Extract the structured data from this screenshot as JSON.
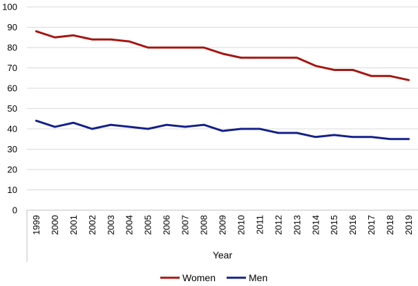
{
  "chart_data": {
    "type": "line",
    "title": "",
    "xlabel": "Year",
    "ylabel": "",
    "ylim": [
      0,
      100
    ],
    "yticks": [
      "0",
      "10",
      "20",
      "30",
      "40",
      "50",
      "60",
      "70",
      "80",
      "90",
      "100"
    ],
    "categories": [
      "1999",
      "2000",
      "2001",
      "2002",
      "2003",
      "2004",
      "2005",
      "2006",
      "2007",
      "2008",
      "2009",
      "2010",
      "2011",
      "2012",
      "2013",
      "2014",
      "2015",
      "2016",
      "2017",
      "2018",
      "2019"
    ],
    "grid": "horizontal",
    "legend": "bottom",
    "series": [
      {
        "name": "Women",
        "color": "#a6140f",
        "values": [
          88,
          85,
          86,
          84,
          84,
          83,
          80,
          80,
          80,
          80,
          77,
          75,
          75,
          75,
          75,
          71,
          69,
          69,
          66,
          66,
          64
        ]
      },
      {
        "name": "Men",
        "color": "#13208a",
        "values": [
          44,
          41,
          43,
          40,
          42,
          41,
          40,
          42,
          41,
          42,
          39,
          40,
          40,
          38,
          38,
          36,
          37,
          36,
          36,
          35,
          35
        ]
      }
    ]
  }
}
